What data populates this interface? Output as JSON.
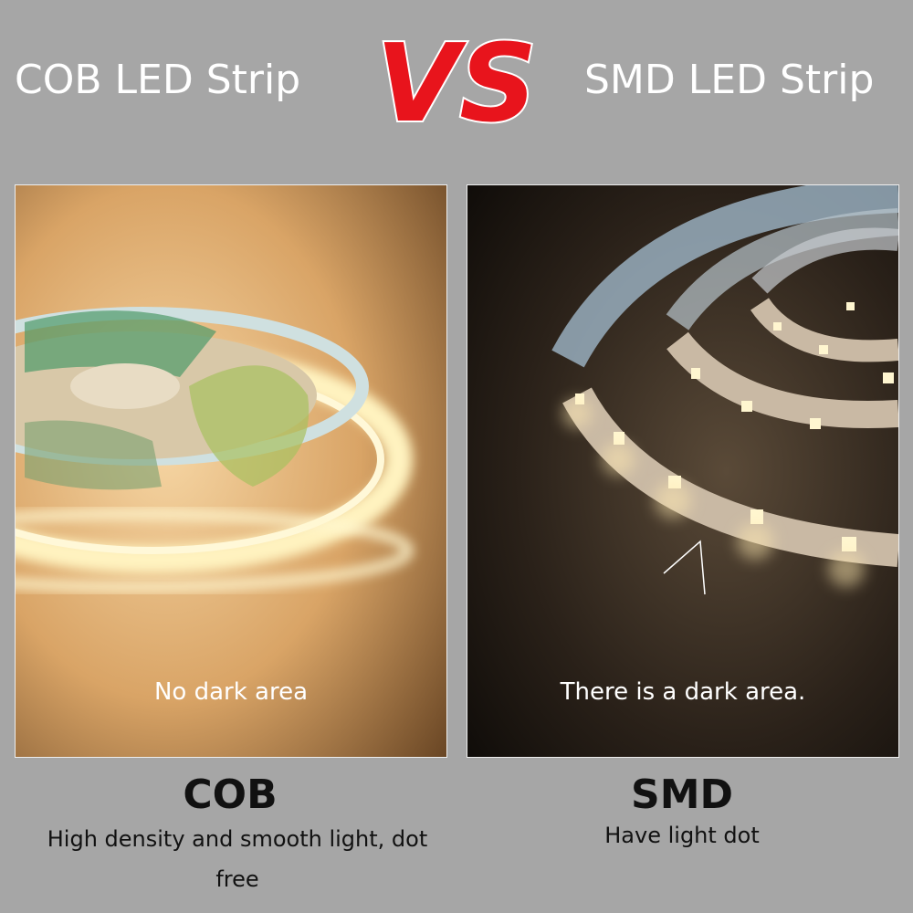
{
  "header": {
    "left_title": "COB LED Strip",
    "vs": "VS",
    "right_title": "SMD LED Strip"
  },
  "panels": [
    {
      "caption": "No dark area",
      "label": "COB",
      "description": "High density and smooth light, dot free"
    },
    {
      "caption": "There is a dark area.",
      "label": "SMD",
      "description": "Have light dot"
    }
  ]
}
